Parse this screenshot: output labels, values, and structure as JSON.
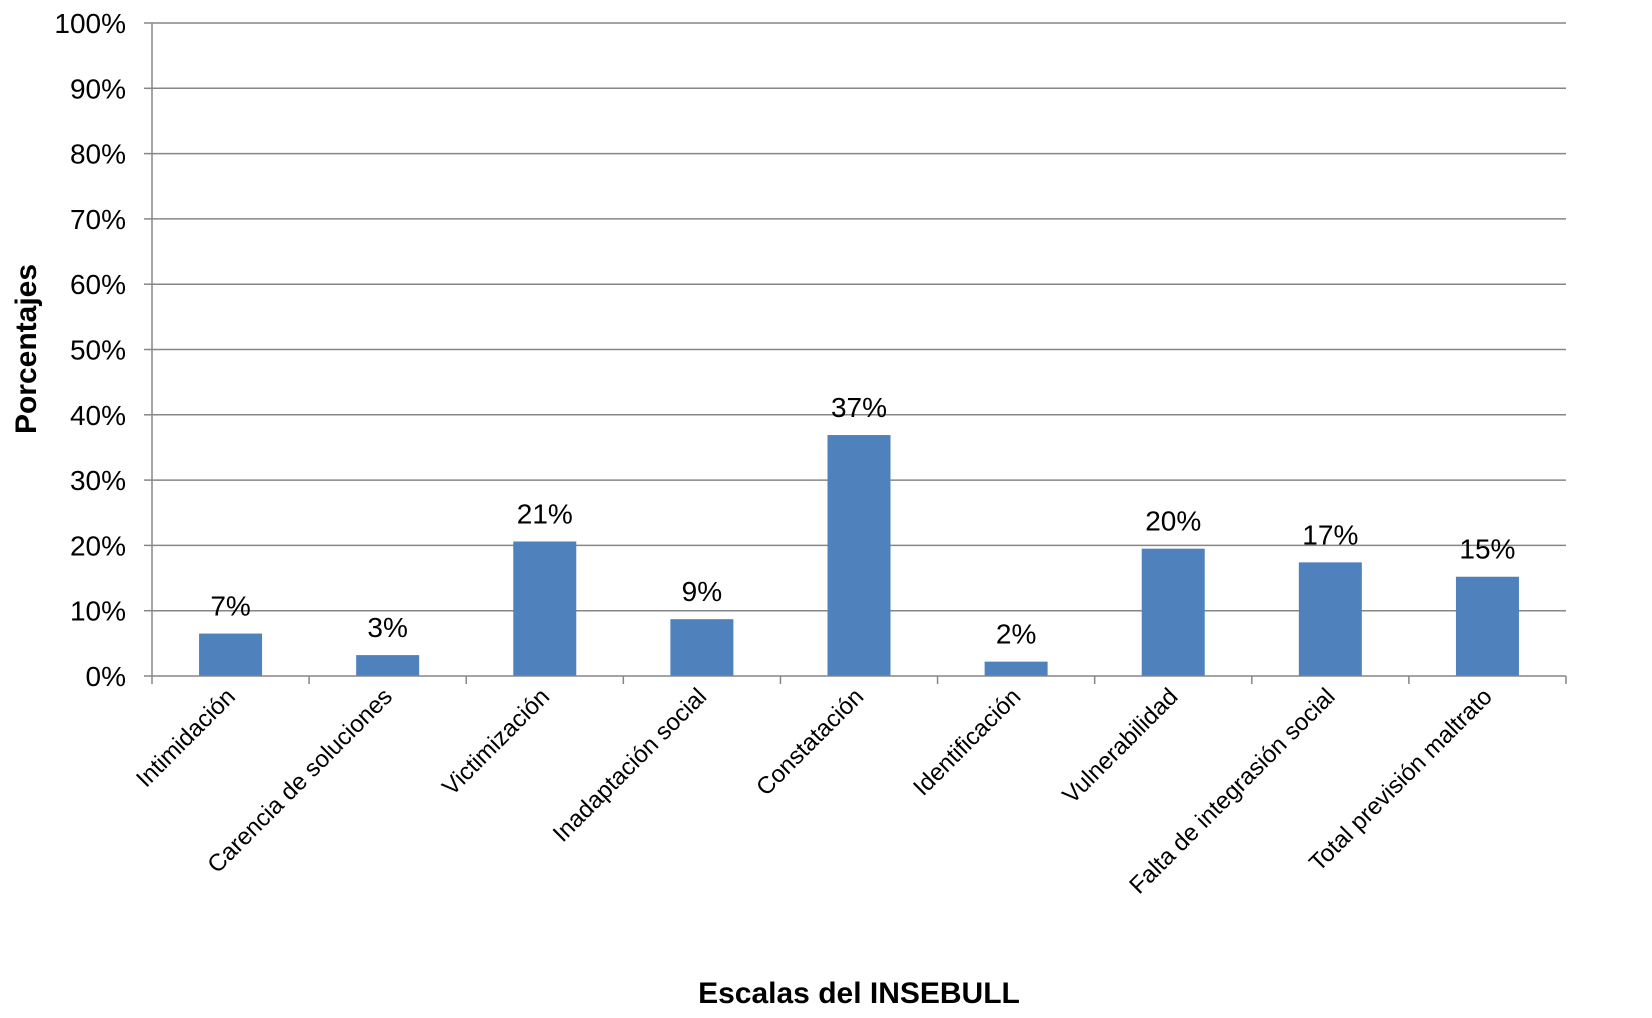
{
  "chart_data": {
    "type": "bar",
    "title": "",
    "xlabel": "Escalas del INSEBULL",
    "ylabel": "Porcentajes",
    "ylim": [
      0,
      100
    ],
    "yticks": [
      0,
      10,
      20,
      30,
      40,
      50,
      60,
      70,
      80,
      90,
      100
    ],
    "ytick_suffix": "%",
    "grid": true,
    "legend": false,
    "categories": [
      "Intimidación",
      "Carencia de soluciones",
      "Victimización",
      "Inadaptación social",
      "Constatación",
      "Identificación",
      "Vulnerabilidad",
      "Falta de integrasión social",
      "Total previsión  maltrato"
    ],
    "values": [
      6.5,
      3.2,
      20.6,
      8.7,
      36.9,
      2.2,
      19.5,
      17.4,
      15.2
    ],
    "data_labels": [
      "7%",
      "3%",
      "21%",
      "9%",
      "37%",
      "2%",
      "20%",
      "17%",
      "15%"
    ],
    "colors": {
      "bar": "#4F81BD",
      "grid": "#868686",
      "axis": "#868686"
    }
  }
}
